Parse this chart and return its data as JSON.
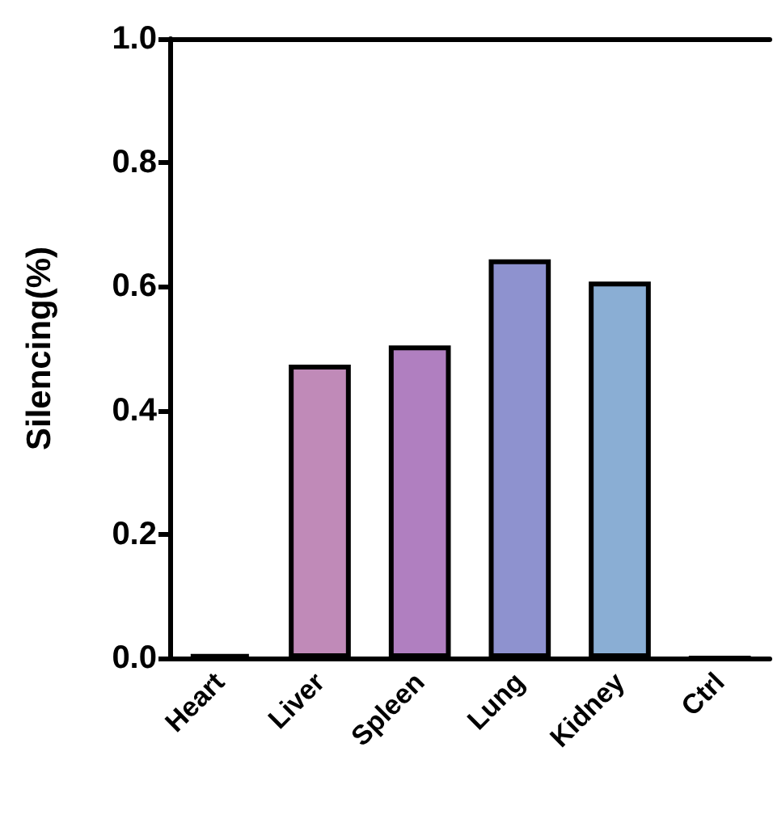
{
  "chart_data": {
    "type": "bar",
    "ylabel": "Silencing(%)",
    "categories": [
      "Heart",
      "Liver",
      "Spleen",
      "Lung",
      "Kidney",
      "Ctrl"
    ],
    "values": [
      0.006,
      0.474,
      0.505,
      0.644,
      0.608,
      0
    ],
    "colors": [
      "#000000",
      "#c08ab8",
      "#b07fc0",
      "#8e92cf",
      "#8aaed4",
      "#000000"
    ],
    "ylim": [
      0,
      1.0
    ],
    "yticks": [
      {
        "value": 0,
        "label": "0.0"
      },
      {
        "value": 0.2,
        "label": "0.2"
      },
      {
        "value": 0.4,
        "label": "0.4"
      },
      {
        "value": 0.6,
        "label": "0.6"
      },
      {
        "value": 0.8,
        "label": "0.8"
      },
      {
        "value": 1.0,
        "label": "1.0"
      }
    ],
    "grid": false
  }
}
